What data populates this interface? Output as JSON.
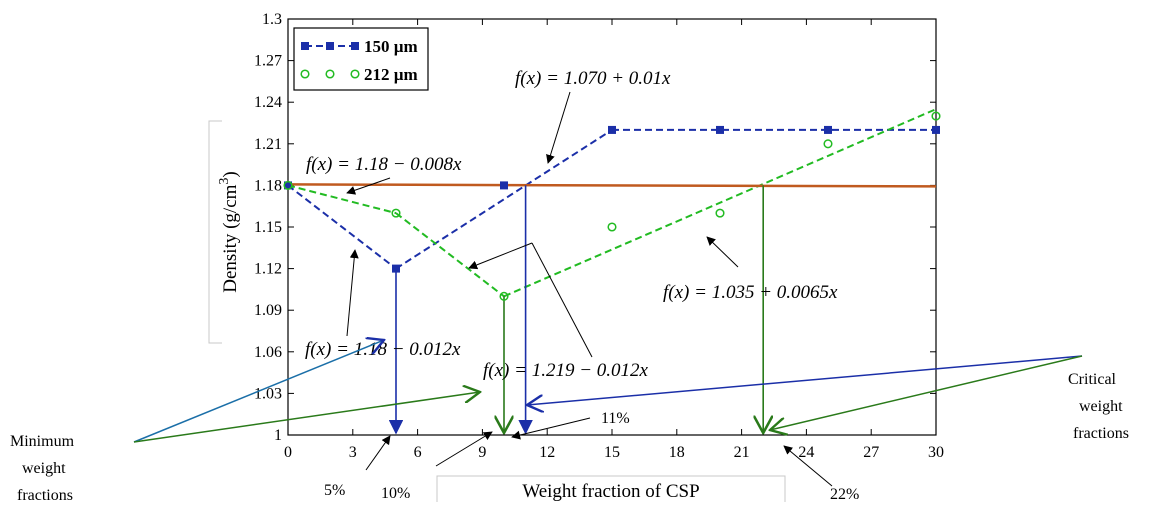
{
  "chart_data": {
    "type": "line",
    "xlabel": "Weight fraction of CSP",
    "ylabel": "Density (g/cm³)",
    "ylabel_base": "Density (g/cm",
    "ylabel_sup": "3",
    "ylabel_close": ")",
    "xlim": [
      0,
      30
    ],
    "ylim": [
      1,
      1.3
    ],
    "xticks": [
      "0",
      "3",
      "6",
      "9",
      "12",
      "15",
      "18",
      "21",
      "24",
      "27",
      "30"
    ],
    "yticks": [
      "1",
      "1.03",
      "1.06",
      "1.09",
      "1.12",
      "1.15",
      "1.18",
      "1.21",
      "1.24",
      "1.27",
      "1.3"
    ],
    "grid": false,
    "legend_position": "top-left",
    "series": [
      {
        "name": "150 µm",
        "color": "#1b2fa8",
        "marker": "filled-square",
        "line": "dashed",
        "x": [
          0,
          5,
          10,
          15,
          20,
          25,
          30
        ],
        "y": [
          1.18,
          1.12,
          1.18,
          1.22,
          1.22,
          1.22,
          1.22
        ]
      },
      {
        "name": "212 µm",
        "color": "#22bb22",
        "marker": "open-circle",
        "line": "dashed",
        "x": [
          0,
          5,
          10,
          15,
          20,
          25,
          30
        ],
        "y": [
          1.18,
          1.16,
          1.1,
          1.15,
          1.16,
          1.21,
          1.23
        ]
      }
    ],
    "reference_line": {
      "y": 1.18,
      "color": "#c05a1f"
    },
    "fit_segments": [
      {
        "x": [
          0,
          5
        ],
        "y": [
          1.18,
          1.12
        ],
        "color": "#1b2fa8"
      },
      {
        "x": [
          5,
          15
        ],
        "y": [
          1.12,
          1.22
        ],
        "color": "#1b2fa8"
      },
      {
        "x": [
          15,
          30
        ],
        "y": [
          1.22,
          1.22
        ],
        "color": "#1b2fa8"
      },
      {
        "x": [
          0,
          5
        ],
        "y": [
          1.18,
          1.16
        ],
        "color": "#22bb22"
      },
      {
        "x": [
          5,
          10
        ],
        "y": [
          1.16,
          1.1
        ],
        "color": "#22bb22"
      },
      {
        "x": [
          10,
          30
        ],
        "y": [
          1.1,
          1.235
        ],
        "color": "#22bb22"
      }
    ],
    "drop_lines": [
      {
        "x": 5,
        "y": 1.12,
        "color": "#1b2fa8"
      },
      {
        "x": 10,
        "y": 1.1,
        "color": "#2a7a1a"
      },
      {
        "x": 11,
        "y": 1.18,
        "color": "#1b2fa8"
      },
      {
        "x": 22,
        "y": 1.18,
        "color": "#2a7a1a"
      }
    ],
    "formulas": [
      {
        "id": "f1",
        "text": "f(x) = 1.070 + 0.01x"
      },
      {
        "id": "f2",
        "text": "f(x) = 1.18 − 0.008x"
      },
      {
        "id": "f3",
        "text": "f(x) = 1.18 − 0.012x"
      },
      {
        "id": "f4",
        "text": "f(x) = 1.219 − 0.012x"
      },
      {
        "id": "f5",
        "text": "f(x) = 1.035 + 0.0065x"
      }
    ],
    "annotations": {
      "minimum_line1": "Minimum",
      "minimum_line2": "weight",
      "minimum_line3": "fractions",
      "critical_line1": "Critical",
      "critical_line2": "weight",
      "critical_line3": "fractions",
      "p5": "5%",
      "p10": "10%",
      "p11": "11%",
      "p22": "22%"
    }
  }
}
